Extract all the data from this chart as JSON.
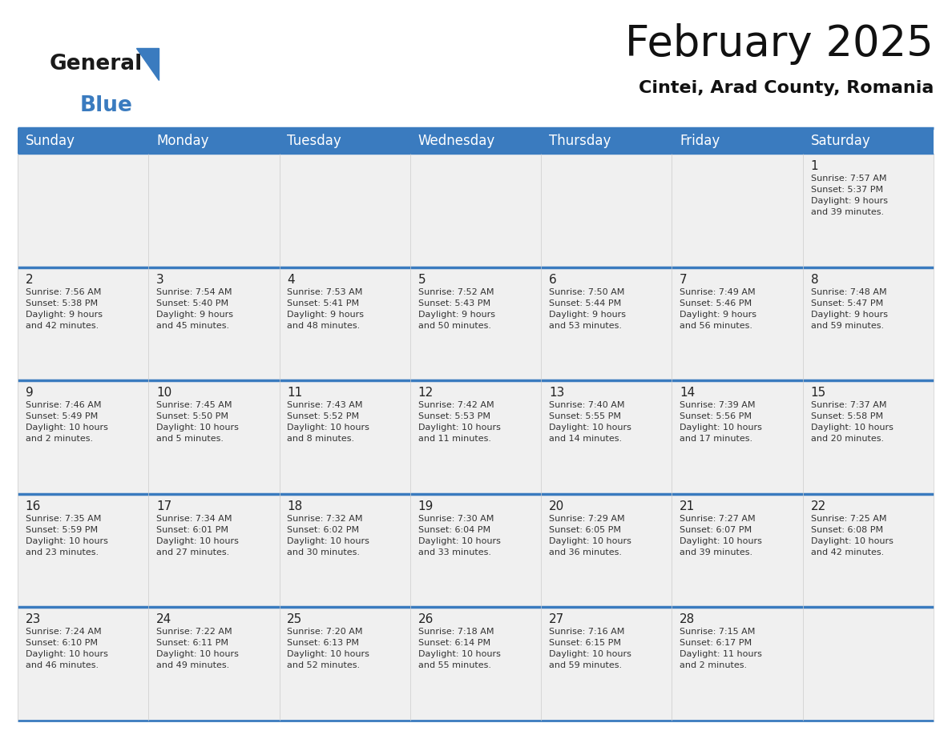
{
  "title": "February 2025",
  "subtitle": "Cintei, Arad County, Romania",
  "header_color": "#3a7bbf",
  "header_text_color": "#ffffff",
  "cell_bg_color": "#f0f0f0",
  "cell_bg_white": "#ffffff",
  "border_color": "#3a7bbf",
  "separator_color": "#3a7bbf",
  "text_color": "#333333",
  "day_num_color": "#222222",
  "days_of_week": [
    "Sunday",
    "Monday",
    "Tuesday",
    "Wednesday",
    "Thursday",
    "Friday",
    "Saturday"
  ],
  "weeks": [
    [
      {
        "day": null,
        "info": null
      },
      {
        "day": null,
        "info": null
      },
      {
        "day": null,
        "info": null
      },
      {
        "day": null,
        "info": null
      },
      {
        "day": null,
        "info": null
      },
      {
        "day": null,
        "info": null
      },
      {
        "day": 1,
        "info": "Sunrise: 7:57 AM\nSunset: 5:37 PM\nDaylight: 9 hours\nand 39 minutes."
      }
    ],
    [
      {
        "day": 2,
        "info": "Sunrise: 7:56 AM\nSunset: 5:38 PM\nDaylight: 9 hours\nand 42 minutes."
      },
      {
        "day": 3,
        "info": "Sunrise: 7:54 AM\nSunset: 5:40 PM\nDaylight: 9 hours\nand 45 minutes."
      },
      {
        "day": 4,
        "info": "Sunrise: 7:53 AM\nSunset: 5:41 PM\nDaylight: 9 hours\nand 48 minutes."
      },
      {
        "day": 5,
        "info": "Sunrise: 7:52 AM\nSunset: 5:43 PM\nDaylight: 9 hours\nand 50 minutes."
      },
      {
        "day": 6,
        "info": "Sunrise: 7:50 AM\nSunset: 5:44 PM\nDaylight: 9 hours\nand 53 minutes."
      },
      {
        "day": 7,
        "info": "Sunrise: 7:49 AM\nSunset: 5:46 PM\nDaylight: 9 hours\nand 56 minutes."
      },
      {
        "day": 8,
        "info": "Sunrise: 7:48 AM\nSunset: 5:47 PM\nDaylight: 9 hours\nand 59 minutes."
      }
    ],
    [
      {
        "day": 9,
        "info": "Sunrise: 7:46 AM\nSunset: 5:49 PM\nDaylight: 10 hours\nand 2 minutes."
      },
      {
        "day": 10,
        "info": "Sunrise: 7:45 AM\nSunset: 5:50 PM\nDaylight: 10 hours\nand 5 minutes."
      },
      {
        "day": 11,
        "info": "Sunrise: 7:43 AM\nSunset: 5:52 PM\nDaylight: 10 hours\nand 8 minutes."
      },
      {
        "day": 12,
        "info": "Sunrise: 7:42 AM\nSunset: 5:53 PM\nDaylight: 10 hours\nand 11 minutes."
      },
      {
        "day": 13,
        "info": "Sunrise: 7:40 AM\nSunset: 5:55 PM\nDaylight: 10 hours\nand 14 minutes."
      },
      {
        "day": 14,
        "info": "Sunrise: 7:39 AM\nSunset: 5:56 PM\nDaylight: 10 hours\nand 17 minutes."
      },
      {
        "day": 15,
        "info": "Sunrise: 7:37 AM\nSunset: 5:58 PM\nDaylight: 10 hours\nand 20 minutes."
      }
    ],
    [
      {
        "day": 16,
        "info": "Sunrise: 7:35 AM\nSunset: 5:59 PM\nDaylight: 10 hours\nand 23 minutes."
      },
      {
        "day": 17,
        "info": "Sunrise: 7:34 AM\nSunset: 6:01 PM\nDaylight: 10 hours\nand 27 minutes."
      },
      {
        "day": 18,
        "info": "Sunrise: 7:32 AM\nSunset: 6:02 PM\nDaylight: 10 hours\nand 30 minutes."
      },
      {
        "day": 19,
        "info": "Sunrise: 7:30 AM\nSunset: 6:04 PM\nDaylight: 10 hours\nand 33 minutes."
      },
      {
        "day": 20,
        "info": "Sunrise: 7:29 AM\nSunset: 6:05 PM\nDaylight: 10 hours\nand 36 minutes."
      },
      {
        "day": 21,
        "info": "Sunrise: 7:27 AM\nSunset: 6:07 PM\nDaylight: 10 hours\nand 39 minutes."
      },
      {
        "day": 22,
        "info": "Sunrise: 7:25 AM\nSunset: 6:08 PM\nDaylight: 10 hours\nand 42 minutes."
      }
    ],
    [
      {
        "day": 23,
        "info": "Sunrise: 7:24 AM\nSunset: 6:10 PM\nDaylight: 10 hours\nand 46 minutes."
      },
      {
        "day": 24,
        "info": "Sunrise: 7:22 AM\nSunset: 6:11 PM\nDaylight: 10 hours\nand 49 minutes."
      },
      {
        "day": 25,
        "info": "Sunrise: 7:20 AM\nSunset: 6:13 PM\nDaylight: 10 hours\nand 52 minutes."
      },
      {
        "day": 26,
        "info": "Sunrise: 7:18 AM\nSunset: 6:14 PM\nDaylight: 10 hours\nand 55 minutes."
      },
      {
        "day": 27,
        "info": "Sunrise: 7:16 AM\nSunset: 6:15 PM\nDaylight: 10 hours\nand 59 minutes."
      },
      {
        "day": 28,
        "info": "Sunrise: 7:15 AM\nSunset: 6:17 PM\nDaylight: 11 hours\nand 2 minutes."
      },
      {
        "day": null,
        "info": null
      }
    ]
  ],
  "logo_general_color": "#1a1a1a",
  "logo_blue_color": "#3a7bbf",
  "logo_triangle_color": "#3a7bbf",
  "title_fontsize": 38,
  "subtitle_fontsize": 16,
  "header_fontsize": 12,
  "day_num_fontsize": 11,
  "cell_text_fontsize": 8
}
